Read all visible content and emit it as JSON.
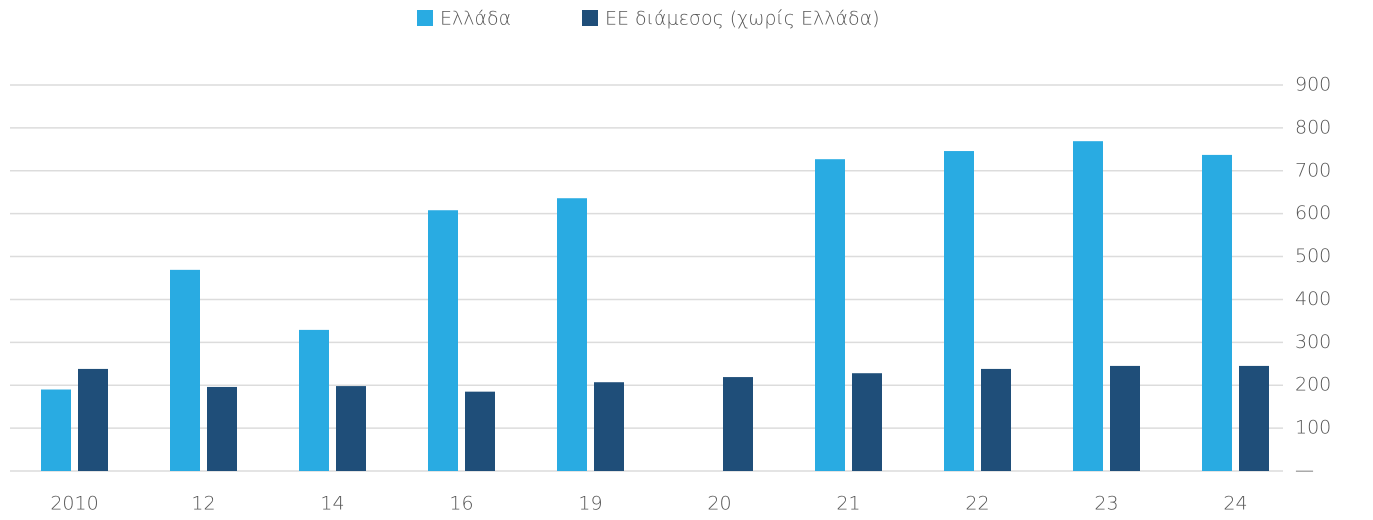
{
  "chart_data": {
    "type": "bar",
    "categories": [
      "2010",
      "12",
      "14",
      "16",
      "19",
      "20",
      "21",
      "22",
      "23",
      "24"
    ],
    "series": [
      {
        "name": "Ελλάδα",
        "color": "#29abe2",
        "values": [
          190,
          469,
          329,
          608,
          636,
          null,
          727,
          746,
          769,
          737
        ]
      },
      {
        "name": "ΕΕ διάμεσος (χωρίς Ελλάδα)",
        "color": "#1f4e79",
        "values": [
          238,
          196,
          198,
          185,
          207,
          219,
          228,
          238,
          245,
          245
        ]
      }
    ],
    "ylim": [
      0,
      900
    ],
    "yticks": [
      {
        "value": 0,
        "label": "—"
      },
      100,
      200,
      300,
      400,
      500,
      600,
      700,
      800,
      900
    ],
    "grid": true,
    "y_axis_side": "right",
    "legend": "top"
  }
}
